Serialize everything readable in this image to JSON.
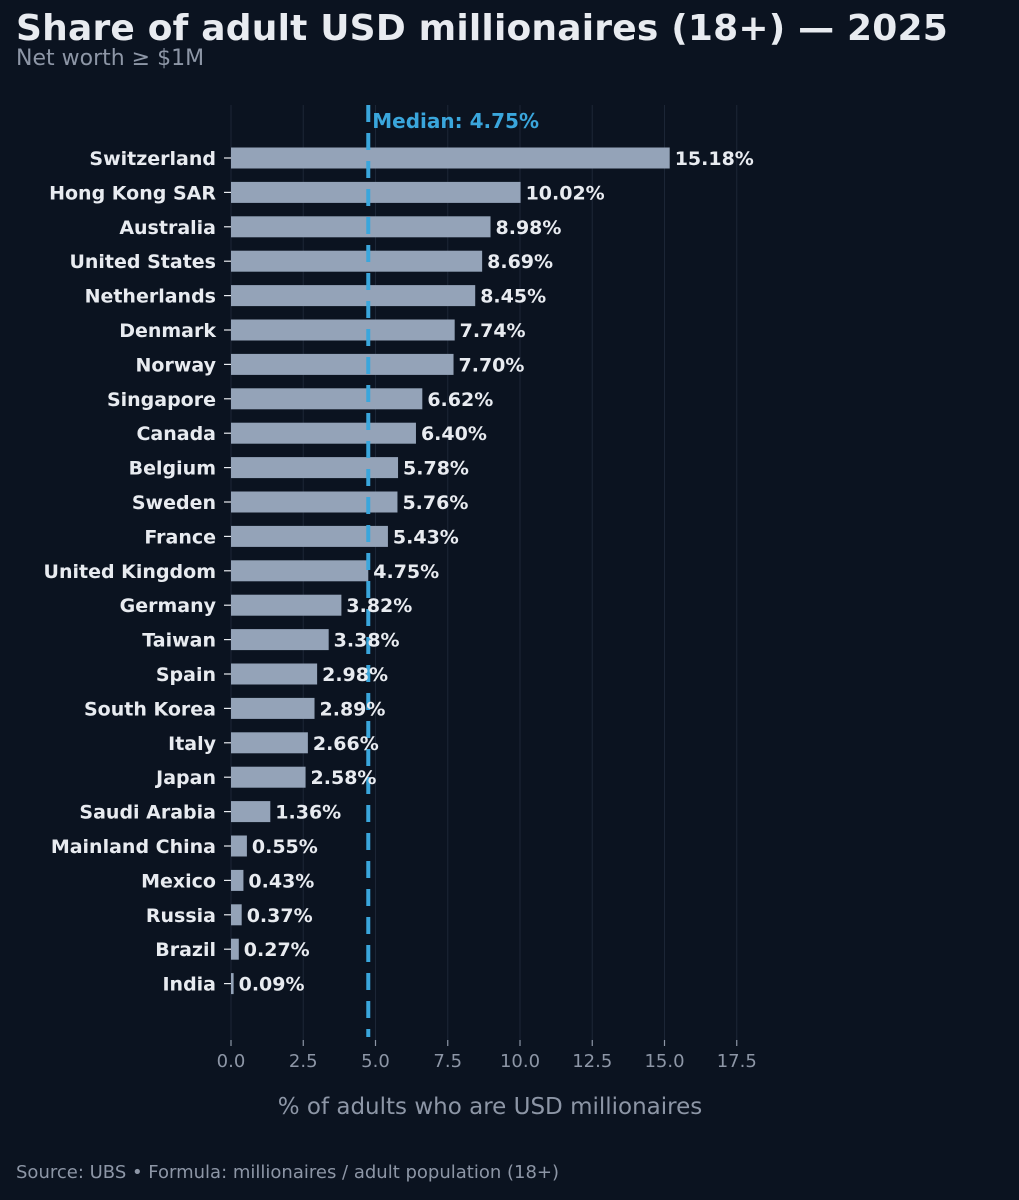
{
  "title": "Share of adult USD millionaires (18+) — 2025",
  "subtitle": "Net worth ≥ $1M",
  "footer": "Source: UBS • Formula: millionaires / adult population (18+)",
  "colors": {
    "background": "#0b1320",
    "bar": "#94a3b8",
    "median_line": "#3aa6dc",
    "text": "#e8ebf0",
    "muted": "#8d96a6",
    "grid": "#1c2636"
  },
  "chart_data": {
    "type": "bar",
    "orientation": "horizontal",
    "title": "Share of adult USD millionaires (18+) — 2025",
    "subtitle": "Net worth ≥ $1M",
    "xlabel": "% of adults who are USD millionaires",
    "ylabel": "",
    "xlim": [
      0,
      18.75
    ],
    "grid": "vertical",
    "categories": [
      "Switzerland",
      "Hong Kong SAR",
      "Australia",
      "United States",
      "Netherlands",
      "Denmark",
      "Norway",
      "Singapore",
      "Canada",
      "Belgium",
      "Sweden",
      "France",
      "United Kingdom",
      "Germany",
      "Taiwan",
      "Spain",
      "South Korea",
      "Italy",
      "Japan",
      "Saudi Arabia",
      "Mainland China",
      "Mexico",
      "Russia",
      "Brazil",
      "India"
    ],
    "values": [
      15.18,
      10.02,
      8.98,
      8.69,
      8.45,
      7.74,
      7.7,
      6.62,
      6.4,
      5.78,
      5.76,
      5.43,
      4.75,
      3.82,
      3.38,
      2.98,
      2.89,
      2.66,
      2.58,
      1.36,
      0.55,
      0.43,
      0.37,
      0.27,
      0.09
    ],
    "value_labels": [
      "15.18%",
      "10.02%",
      "8.98%",
      "8.69%",
      "8.45%",
      "7.74%",
      "7.70%",
      "6.62%",
      "6.40%",
      "5.78%",
      "5.76%",
      "5.43%",
      "4.75%",
      "3.82%",
      "3.38%",
      "2.98%",
      "2.89%",
      "2.66%",
      "2.58%",
      "1.36%",
      "0.55%",
      "0.43%",
      "0.37%",
      "0.27%",
      "0.09%"
    ],
    "x_ticks": [
      0,
      2.5,
      5,
      7.5,
      10,
      12.5,
      15,
      17.5
    ],
    "x_tick_labels": [
      "0.0",
      "2.5",
      "5.0",
      "7.5",
      "10.0",
      "12.5",
      "15.0",
      "17.5"
    ],
    "median": {
      "value": 4.75,
      "label": "Median: 4.75%"
    }
  }
}
